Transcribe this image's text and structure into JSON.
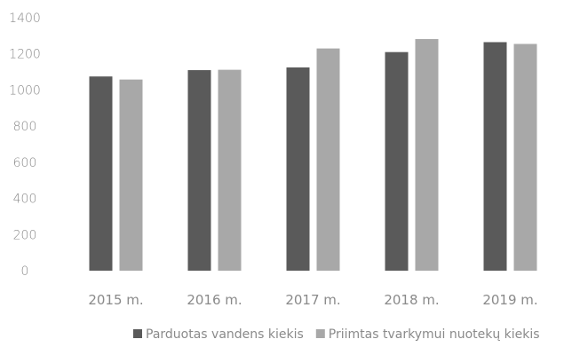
{
  "chart_data": {
    "type": "bar",
    "categories": [
      "2015 m.",
      "2016 m.",
      "2017 m.",
      "2018 m.",
      "2019 m."
    ],
    "series": [
      {
        "name": "Parduotas vandens kiekis",
        "values": [
          1075,
          1110,
          1125,
          1210,
          1265
        ],
        "color": "#5a5a5a"
      },
      {
        "name": "Priimtas tvarkymui nuotekų kiekis",
        "values": [
          1058,
          1112,
          1230,
          1282,
          1255
        ],
        "color": "#a8a8a8"
      }
    ],
    "title": "",
    "xlabel": "",
    "ylabel": "",
    "ylim": [
      0,
      1400
    ],
    "yticks": [
      0,
      200,
      400,
      600,
      800,
      1000,
      1200,
      1400
    ],
    "grid": false,
    "legend_position": "bottom"
  }
}
